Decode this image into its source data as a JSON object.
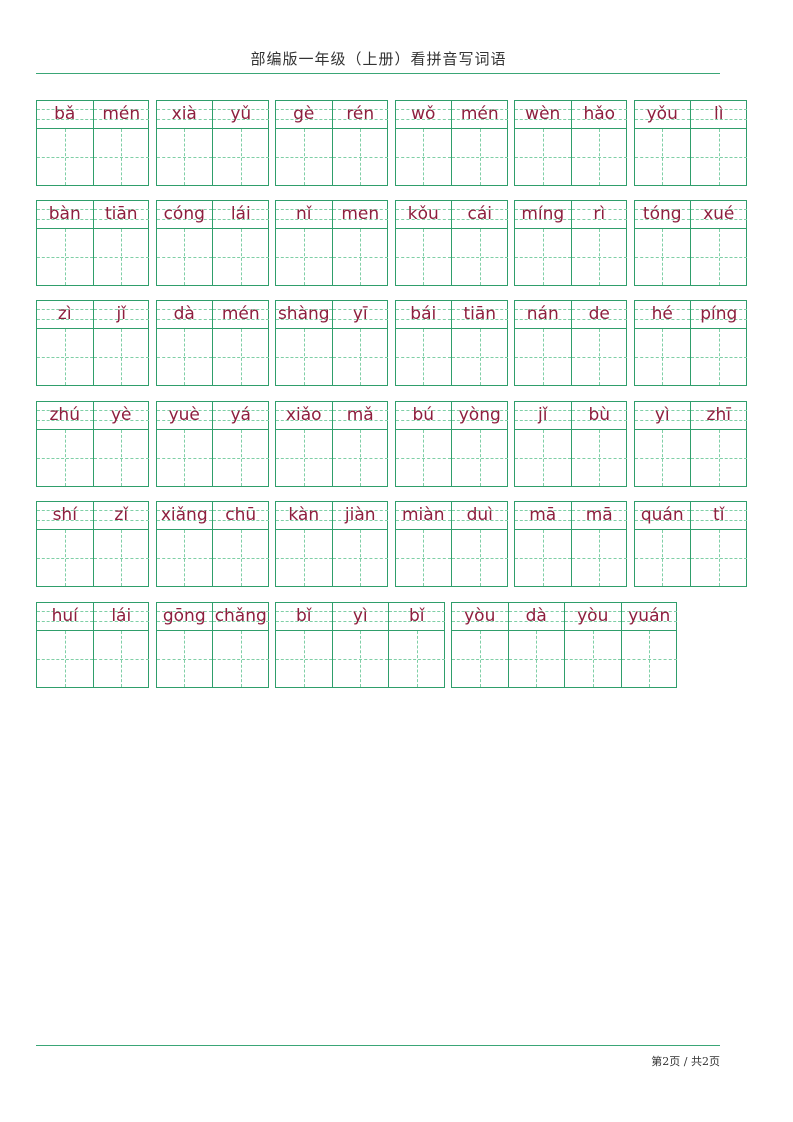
{
  "header": {
    "title": "部编版一年级（上册）看拼音写词语"
  },
  "footer": {
    "page_text": "第2页 / 共2页"
  },
  "colors": {
    "grid": "#2f9e6b",
    "pinyin": "#8e1f3e"
  },
  "rows": [
    [
      [
        "bǎ",
        "mén"
      ],
      [
        "xià",
        "yǔ"
      ],
      [
        "gè",
        "rén"
      ],
      [
        "wǒ",
        "mén"
      ],
      [
        "wèn",
        "hǎo"
      ],
      [
        "yǒu",
        "lì"
      ]
    ],
    [
      [
        "bàn",
        "tiān"
      ],
      [
        "cóng",
        "lái"
      ],
      [
        "nǐ",
        "men"
      ],
      [
        "kǒu",
        "cái"
      ],
      [
        "míng",
        "rì"
      ],
      [
        "tóng",
        "xué"
      ]
    ],
    [
      [
        "zì",
        "jǐ"
      ],
      [
        "dà",
        "mén"
      ],
      [
        "shàng",
        "yī"
      ],
      [
        "bái",
        "tiān"
      ],
      [
        "nán",
        "de"
      ],
      [
        "hé",
        "píng"
      ]
    ],
    [
      [
        "zhú",
        "yè"
      ],
      [
        "yuè",
        "yá"
      ],
      [
        "xiǎo",
        "mǎ"
      ],
      [
        "bú",
        "yòng"
      ],
      [
        "jǐ",
        "bù"
      ],
      [
        "yì",
        "zhī"
      ]
    ],
    [
      [
        "shí",
        "zǐ"
      ],
      [
        "xiǎng",
        "chū"
      ],
      [
        "kàn",
        "jiàn"
      ],
      [
        "miàn",
        "duì"
      ],
      [
        "mā",
        "mā"
      ],
      [
        "quán",
        "tǐ"
      ]
    ],
    [
      [
        "huí",
        "lái"
      ],
      [
        "gōng",
        "chǎng"
      ],
      [
        "bǐ",
        "yì",
        "bǐ"
      ],
      [
        "yòu",
        "dà",
        "yòu",
        "yuán"
      ]
    ]
  ]
}
